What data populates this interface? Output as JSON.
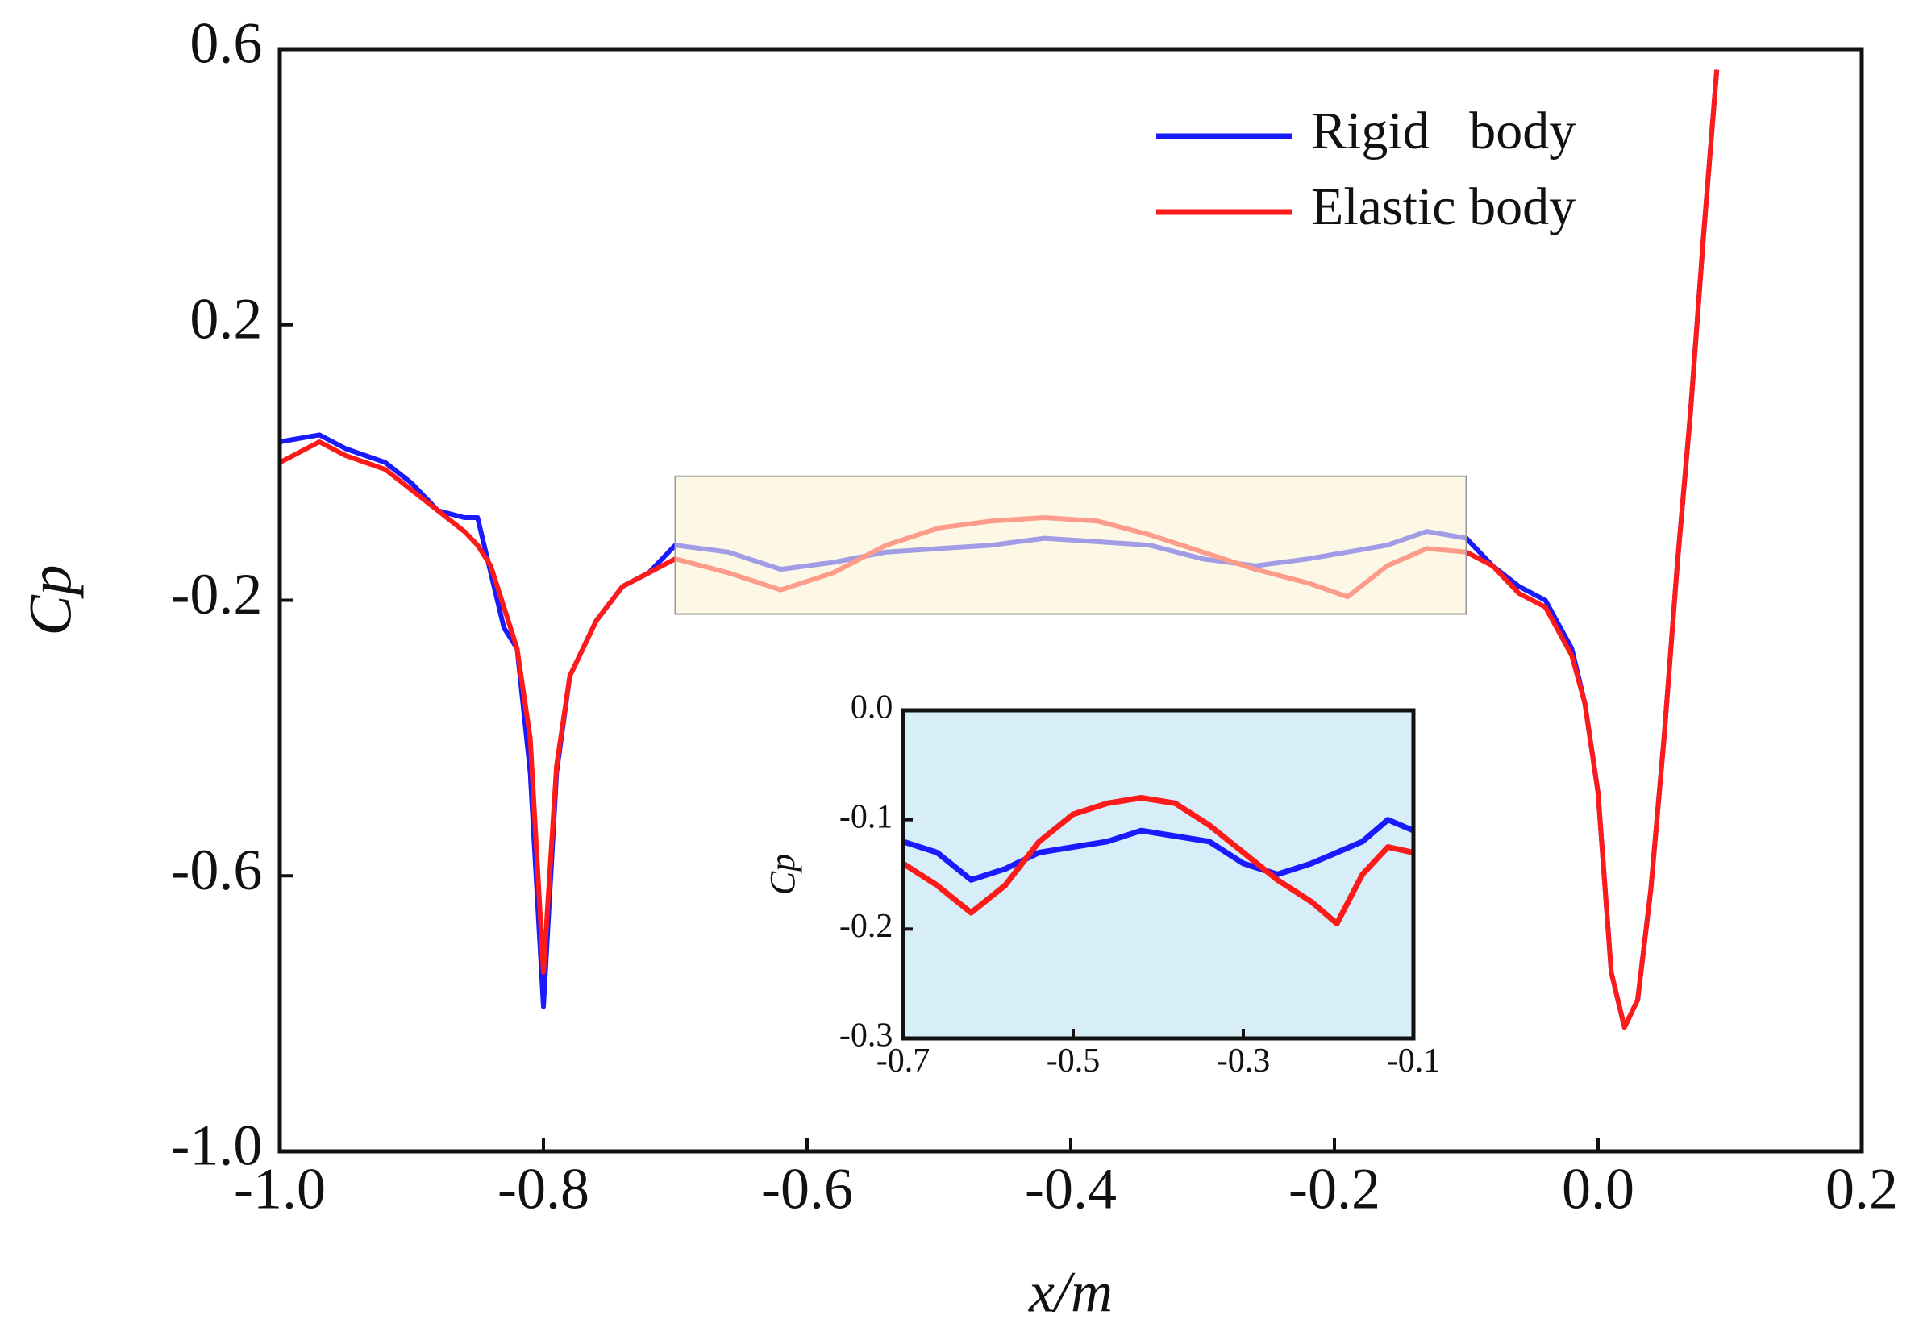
{
  "chart_data": [
    {
      "type": "line",
      "xlabel": "x/m",
      "ylabel": "Cp",
      "xlim": [
        -1.0,
        0.2
      ],
      "xticks": [
        {
          "value": -1.0,
          "label": "-1.0"
        },
        -0.8,
        -0.6,
        -0.4,
        -0.2,
        {
          "value": 0,
          "label": "0.0"
        },
        0.2
      ],
      "ylim": [
        -1.0,
        0.6
      ],
      "yticks": [
        {
          "value": -1.0,
          "label": "-1.0"
        },
        -0.6,
        -0.2,
        0.2,
        0.6
      ],
      "legend": "upper right",
      "zoom_box": {
        "x": [
          -0.7,
          -0.1
        ],
        "y": [
          -0.02,
          -0.22
        ]
      },
      "x": [
        -1.0,
        -0.97,
        -0.95,
        -0.92,
        -0.9,
        -0.88,
        -0.86,
        -0.85,
        -0.84,
        -0.83,
        -0.82,
        -0.81,
        -0.8,
        -0.79,
        -0.78,
        -0.76,
        -0.74,
        -0.72,
        -0.7,
        -0.66,
        -0.62,
        -0.58,
        -0.54,
        -0.5,
        -0.46,
        -0.42,
        -0.38,
        -0.34,
        -0.3,
        -0.26,
        -0.22,
        -0.19,
        -0.16,
        -0.13,
        -0.1,
        -0.08,
        -0.06,
        -0.04,
        -0.02,
        -0.01,
        0.0,
        0.01,
        0.02,
        0.03,
        0.04,
        0.05,
        0.06,
        0.07,
        0.08,
        0.09
      ],
      "series": [
        {
          "name": "Rigid   body",
          "color": "#1a1aff",
          "values": [
            0.03,
            0.04,
            0.02,
            0.0,
            -0.03,
            -0.07,
            -0.08,
            -0.08,
            -0.16,
            -0.24,
            -0.27,
            -0.45,
            -0.79,
            -0.45,
            -0.31,
            -0.23,
            -0.18,
            -0.16,
            -0.12,
            -0.13,
            -0.155,
            -0.145,
            -0.13,
            -0.125,
            -0.12,
            -0.11,
            -0.115,
            -0.12,
            -0.14,
            -0.15,
            -0.14,
            -0.13,
            -0.12,
            -0.1,
            -0.11,
            -0.15,
            -0.18,
            -0.2,
            -0.27,
            -0.35,
            -0.48,
            -0.74,
            -0.82,
            -0.78,
            -0.62,
            -0.4,
            -0.15,
            0.07,
            0.33,
            0.57
          ]
        },
        {
          "name": "Elastic body",
          "color": "#ff1a1a",
          "values": [
            0.0,
            0.03,
            0.01,
            -0.01,
            -0.04,
            -0.07,
            -0.1,
            -0.12,
            -0.15,
            -0.21,
            -0.27,
            -0.4,
            -0.74,
            -0.44,
            -0.31,
            -0.23,
            -0.18,
            -0.16,
            -0.14,
            -0.16,
            -0.185,
            -0.16,
            -0.12,
            -0.095,
            -0.085,
            -0.08,
            -0.085,
            -0.105,
            -0.13,
            -0.155,
            -0.175,
            -0.195,
            -0.15,
            -0.125,
            -0.13,
            -0.15,
            -0.19,
            -0.21,
            -0.28,
            -0.35,
            -0.48,
            -0.74,
            -0.82,
            -0.78,
            -0.62,
            -0.4,
            -0.15,
            0.07,
            0.33,
            0.57
          ]
        }
      ]
    },
    {
      "type": "line",
      "ylabel": "Cp",
      "xlim": [
        -0.7,
        -0.1
      ],
      "xticks": [
        -0.7,
        -0.5,
        -0.3,
        -0.1
      ],
      "ylim": [
        -0.3,
        0.0
      ],
      "yticks": [
        {
          "value": 0,
          "label": "0.0"
        },
        -0.1,
        -0.2,
        -0.3
      ],
      "x": [
        -0.7,
        -0.66,
        -0.62,
        -0.58,
        -0.54,
        -0.5,
        -0.46,
        -0.42,
        -0.38,
        -0.34,
        -0.3,
        -0.26,
        -0.22,
        -0.19,
        -0.16,
        -0.13,
        -0.1
      ],
      "series": [
        {
          "name": "Rigid   body",
          "color": "#1a1aff",
          "values": [
            -0.12,
            -0.13,
            -0.155,
            -0.145,
            -0.13,
            -0.125,
            -0.12,
            -0.11,
            -0.115,
            -0.12,
            -0.14,
            -0.15,
            -0.14,
            -0.13,
            -0.12,
            -0.1,
            -0.11
          ]
        },
        {
          "name": "Elastic body",
          "color": "#ff1a1a",
          "values": [
            -0.14,
            -0.16,
            -0.185,
            -0.16,
            -0.12,
            -0.095,
            -0.085,
            -0.08,
            -0.085,
            -0.105,
            -0.13,
            -0.155,
            -0.175,
            -0.195,
            -0.15,
            -0.125,
            -0.13
          ]
        }
      ]
    }
  ]
}
